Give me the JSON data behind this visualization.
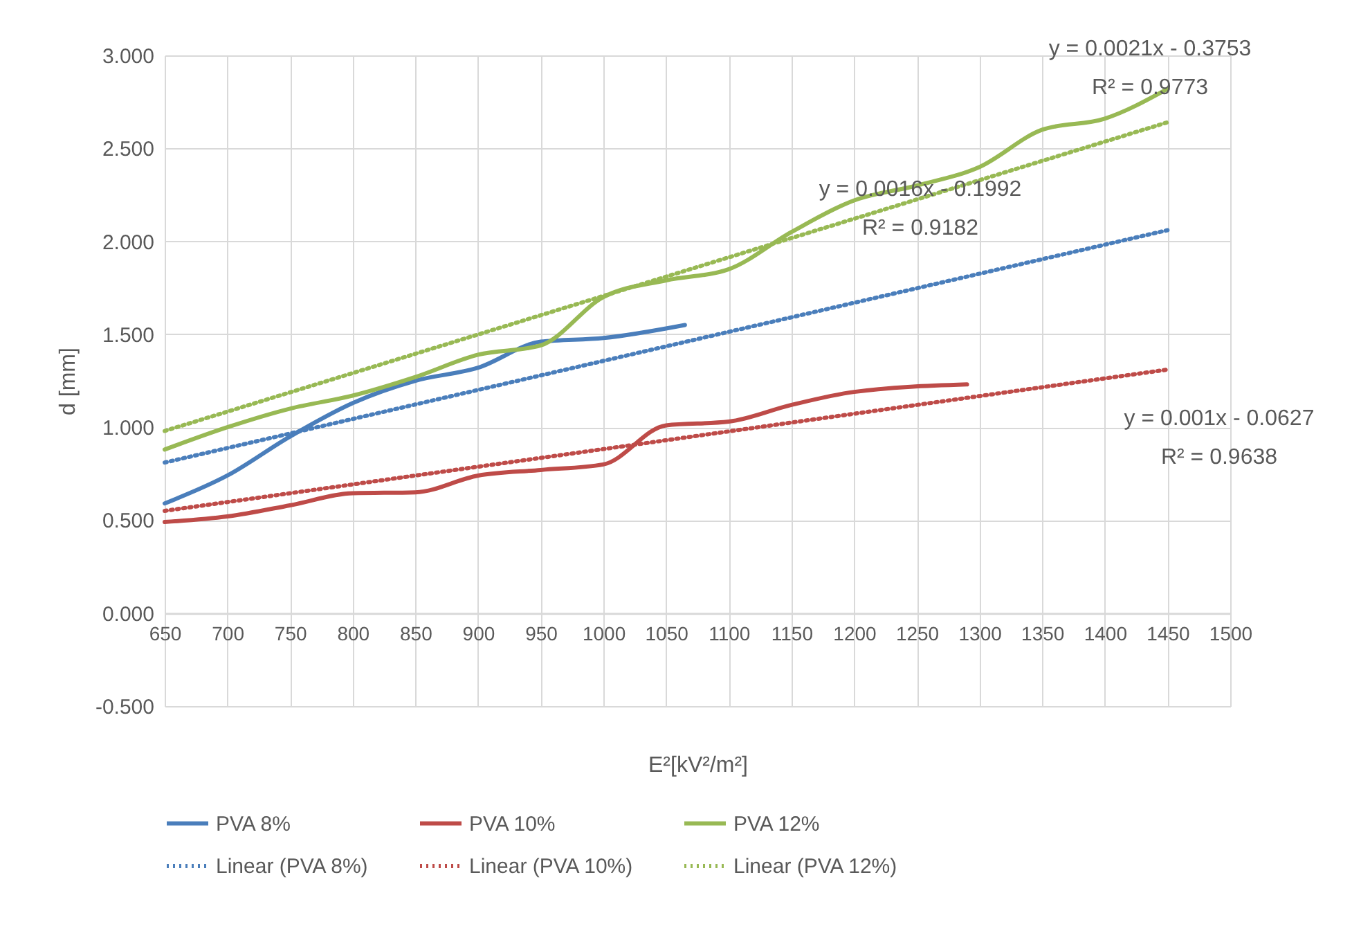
{
  "chart_data": {
    "type": "line",
    "xlabel": "E²[kV²/m²]",
    "ylabel": "d [mm]",
    "xlim": [
      650,
      1500
    ],
    "xticks": [
      650,
      700,
      750,
      800,
      850,
      900,
      950,
      1000,
      1050,
      1100,
      1150,
      1200,
      1250,
      1300,
      1350,
      1400,
      1450,
      1500
    ],
    "ylim": [
      -0.5,
      3.0
    ],
    "yticks": [
      {
        "value": -0.5,
        "label": "-0.500"
      },
      {
        "value": 0,
        "label": "0.000"
      },
      {
        "value": 0.5,
        "label": "0.500"
      },
      {
        "value": 1,
        "label": "1.000"
      },
      {
        "value": 1.5,
        "label": "1.500"
      },
      {
        "value": 2,
        "label": "2.000"
      },
      {
        "value": 2.5,
        "label": "2.500"
      },
      {
        "value": 3,
        "label": "3.000"
      }
    ],
    "grid": true,
    "legend": "bottom",
    "marker": "none",
    "series": [
      {
        "name": "PVA 8%",
        "color": "#4a7ebb",
        "line_style": "solid",
        "x": [
          650,
          700,
          750,
          800,
          850,
          900,
          950,
          1000,
          1065
        ],
        "values": [
          0.59,
          0.74,
          0.95,
          1.13,
          1.25,
          1.32,
          1.46,
          1.48,
          1.55
        ]
      },
      {
        "name": "PVA 10%",
        "color": "#be4b48",
        "line_style": "solid",
        "x": [
          650,
          700,
          750,
          800,
          850,
          900,
          950,
          1000,
          1050,
          1100,
          1150,
          1200,
          1290
        ],
        "values": [
          0.49,
          0.52,
          0.58,
          0.645,
          0.65,
          0.74,
          0.77,
          0.8,
          1.01,
          1.03,
          1.12,
          1.19,
          1.23
        ]
      },
      {
        "name": "PVA 12%",
        "color": "#98b954",
        "line_style": "solid",
        "x": [
          650,
          700,
          750,
          800,
          850,
          900,
          950,
          1000,
          1050,
          1100,
          1150,
          1200,
          1250,
          1300,
          1350,
          1400,
          1450
        ],
        "values": [
          0.88,
          1.0,
          1.1,
          1.17,
          1.27,
          1.39,
          1.44,
          1.7,
          1.79,
          1.85,
          2.05,
          2.22,
          2.3,
          2.4,
          2.6,
          2.66,
          2.82
        ]
      },
      {
        "name": "Linear (PVA 8%)",
        "color": "#4a7ebb",
        "line_style": "dotted",
        "x": [
          650,
          1450
        ],
        "values": [
          0.81,
          2.06
        ]
      },
      {
        "name": "Linear (PVA 10%)",
        "color": "#be4b48",
        "line_style": "dotted",
        "x": [
          650,
          1450
        ],
        "values": [
          0.55,
          1.31
        ]
      },
      {
        "name": "Linear (PVA 12%)",
        "color": "#98b954",
        "line_style": "dotted",
        "x": [
          650,
          1450
        ],
        "values": [
          0.98,
          2.64
        ]
      }
    ],
    "annotations": [
      "y = 0.0016x - 0.1992\nR² = 0.9182",
      "y = 0.0021x - 0.3753\nR² = 0.9773",
      "y = 0.001x - 0.0627\nR² = 0.9638"
    ]
  }
}
